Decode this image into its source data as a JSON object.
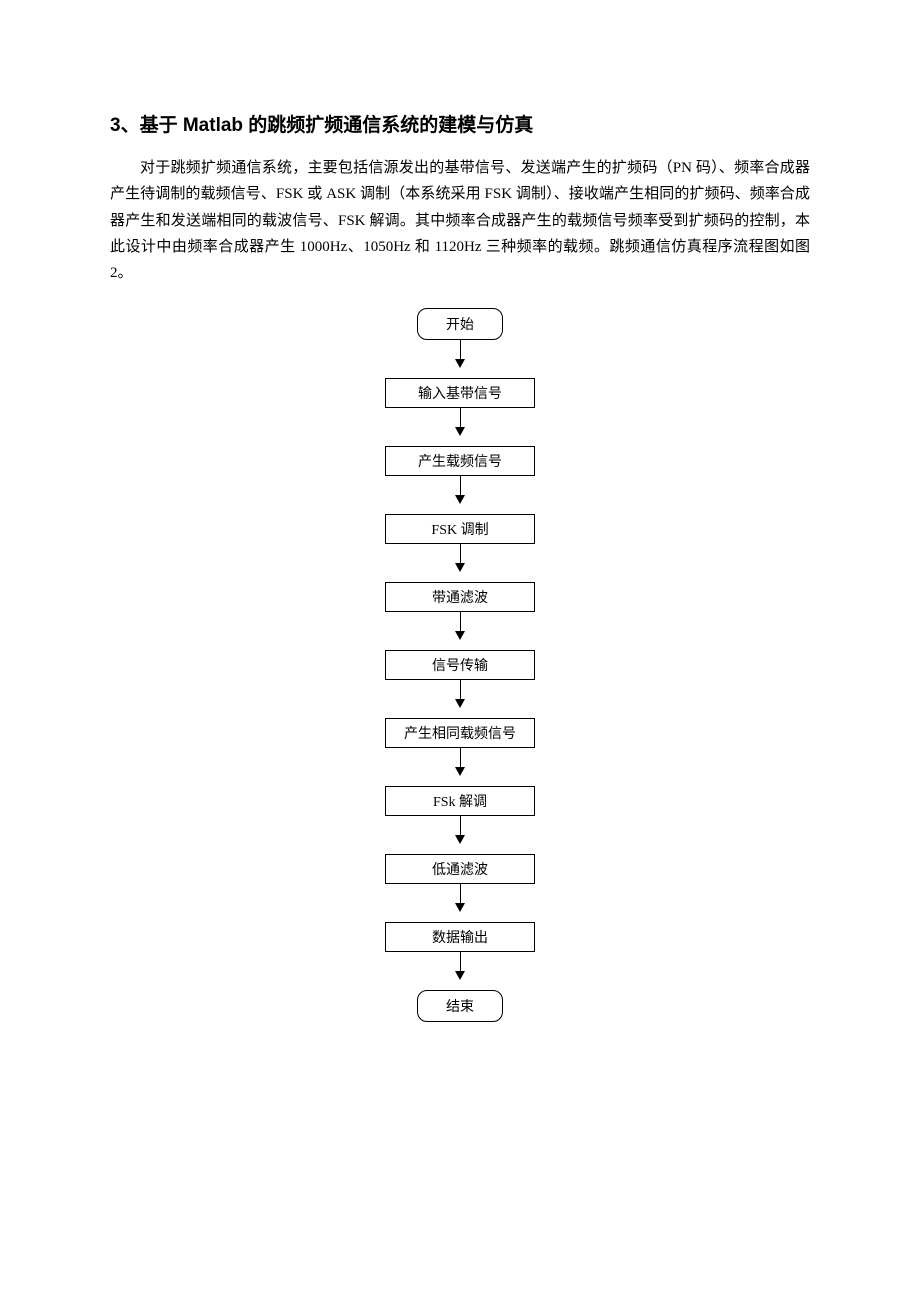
{
  "heading": "3、基于 Matlab 的跳频扩频通信系统的建模与仿真",
  "paragraph": "对于跳频扩频通信系统，主要包括信源发出的基带信号、发送端产生的扩频码（PN 码）、频率合成器产生待调制的载频信号、FSK 或 ASK 调制（本系统采用 FSK 调制）、接收端产生相同的扩频码、频率合成器产生和发送端相同的载波信号、FSK 解调。其中频率合成器产生的载频信号频率受到扩频码的控制，本此设计中由频率合成器产生 1000Hz、1050Hz 和 1120Hz 三种频率的载频。跳频通信仿真程序流程图如图 2。",
  "flowchart": {
    "type": "flowchart",
    "border_color": "#000000",
    "bg_color": "#ffffff",
    "text_color": "#000000",
    "font_size": 14,
    "nodes": [
      {
        "label": "开始",
        "shape": "terminal"
      },
      {
        "label": "输入基带信号",
        "shape": "process"
      },
      {
        "label": "产生载频信号",
        "shape": "process"
      },
      {
        "label": "FSK 调制",
        "shape": "process"
      },
      {
        "label": "带通滤波",
        "shape": "process"
      },
      {
        "label": "信号传输",
        "shape": "process"
      },
      {
        "label": "产生相同载频信号",
        "shape": "process"
      },
      {
        "label": "FSk 解调",
        "shape": "process"
      },
      {
        "label": "低通滤波",
        "shape": "process"
      },
      {
        "label": "数据输出",
        "shape": "process"
      },
      {
        "label": "结束",
        "shape": "terminal"
      }
    ]
  }
}
